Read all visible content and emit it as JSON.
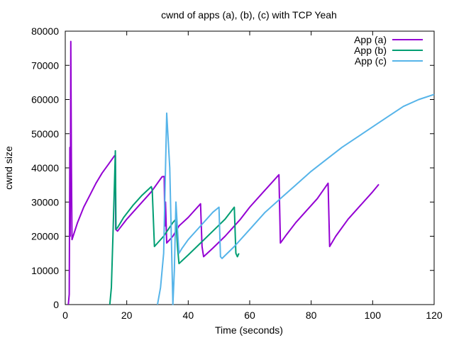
{
  "chart_data": {
    "type": "line",
    "title": "cwnd of apps (a), (b), (c) with TCP Yeah",
    "xlabel": "Time (seconds)",
    "ylabel": "cwnd size",
    "xlim": [
      0,
      120
    ],
    "ylim": [
      0,
      80000
    ],
    "xticks": [
      0,
      20,
      40,
      60,
      80,
      100,
      120
    ],
    "yticks": [
      0,
      10000,
      20000,
      30000,
      40000,
      50000,
      60000,
      70000,
      80000
    ],
    "grid": false,
    "legend_position": "top-right",
    "series": [
      {
        "name": "App (a)",
        "color": "#9400d3",
        "points": [
          [
            1.0,
            0
          ],
          [
            1.3,
            3000
          ],
          [
            1.5,
            46000
          ],
          [
            1.6,
            20000
          ],
          [
            1.7,
            45000
          ],
          [
            1.8,
            77000
          ],
          [
            1.9,
            60000
          ],
          [
            2.0,
            40000
          ],
          [
            2.2,
            19000
          ],
          [
            4,
            24000
          ],
          [
            6,
            28500
          ],
          [
            8,
            32000
          ],
          [
            10,
            35500
          ],
          [
            12,
            38500
          ],
          [
            14,
            41000
          ],
          [
            16,
            43500
          ],
          [
            16.3,
            43600
          ],
          [
            16.4,
            22000
          ],
          [
            17,
            21500
          ],
          [
            20,
            25000
          ],
          [
            24,
            29000
          ],
          [
            28,
            33000
          ],
          [
            31.5,
            37400
          ],
          [
            32.2,
            37500
          ],
          [
            32.4,
            23000
          ],
          [
            32.6,
            30000
          ],
          [
            33,
            18000
          ],
          [
            35,
            20000
          ],
          [
            37,
            23000
          ],
          [
            40,
            25500
          ],
          [
            44,
            29500
          ],
          [
            44.5,
            17000
          ],
          [
            45,
            14000
          ],
          [
            48,
            16500
          ],
          [
            52,
            20000
          ],
          [
            57,
            25000
          ],
          [
            60,
            28500
          ],
          [
            64,
            32500
          ],
          [
            69.5,
            38000
          ],
          [
            70,
            18000
          ],
          [
            72,
            20500
          ],
          [
            75,
            24000
          ],
          [
            78,
            27000
          ],
          [
            82,
            31000
          ],
          [
            85.5,
            35500
          ],
          [
            86,
            17000
          ],
          [
            88,
            20000
          ],
          [
            92,
            25000
          ],
          [
            96,
            29000
          ],
          [
            100,
            33000
          ],
          [
            102,
            35200
          ]
        ]
      },
      {
        "name": "App (b)",
        "color": "#009e73",
        "points": [
          [
            14.5,
            0
          ],
          [
            15,
            5000
          ],
          [
            15.5,
            20000
          ],
          [
            16,
            35000
          ],
          [
            16.3,
            45000
          ],
          [
            16.5,
            22000
          ],
          [
            17,
            22500
          ],
          [
            19,
            25500
          ],
          [
            22,
            29000
          ],
          [
            25,
            32000
          ],
          [
            28,
            34500
          ],
          [
            28.3,
            33500
          ],
          [
            29,
            17000
          ],
          [
            32,
            20000
          ],
          [
            35,
            24000
          ],
          [
            36,
            25000
          ],
          [
            36.5,
            17000
          ],
          [
            37,
            12000
          ],
          [
            40,
            14500
          ],
          [
            44,
            18000
          ],
          [
            48,
            21500
          ],
          [
            52,
            25000
          ],
          [
            55,
            28500
          ],
          [
            55.5,
            15000
          ],
          [
            56,
            14000
          ],
          [
            56.5,
            15000
          ]
        ]
      },
      {
        "name": "App (c)",
        "color": "#56b4e9",
        "points": [
          [
            30,
            0
          ],
          [
            31,
            5000
          ],
          [
            32,
            15000
          ],
          [
            33,
            56000
          ],
          [
            34,
            40000
          ],
          [
            34.5,
            20000
          ],
          [
            35,
            0
          ],
          [
            35.5,
            10000
          ],
          [
            36,
            30000
          ],
          [
            36.5,
            22000
          ],
          [
            37,
            15000
          ],
          [
            38,
            16500
          ],
          [
            40,
            19000
          ],
          [
            44,
            23000
          ],
          [
            48,
            27000
          ],
          [
            50,
            28500
          ],
          [
            50.5,
            14000
          ],
          [
            51,
            13500
          ],
          [
            55,
            17000
          ],
          [
            60,
            22000
          ],
          [
            65,
            27000
          ],
          [
            70,
            31000
          ],
          [
            75,
            35000
          ],
          [
            80,
            39000
          ],
          [
            85,
            42500
          ],
          [
            90,
            46000
          ],
          [
            95,
            49000
          ],
          [
            100,
            52000
          ],
          [
            105,
            55000
          ],
          [
            110,
            58000
          ],
          [
            115,
            60000
          ],
          [
            120,
            61500
          ]
        ]
      }
    ]
  }
}
